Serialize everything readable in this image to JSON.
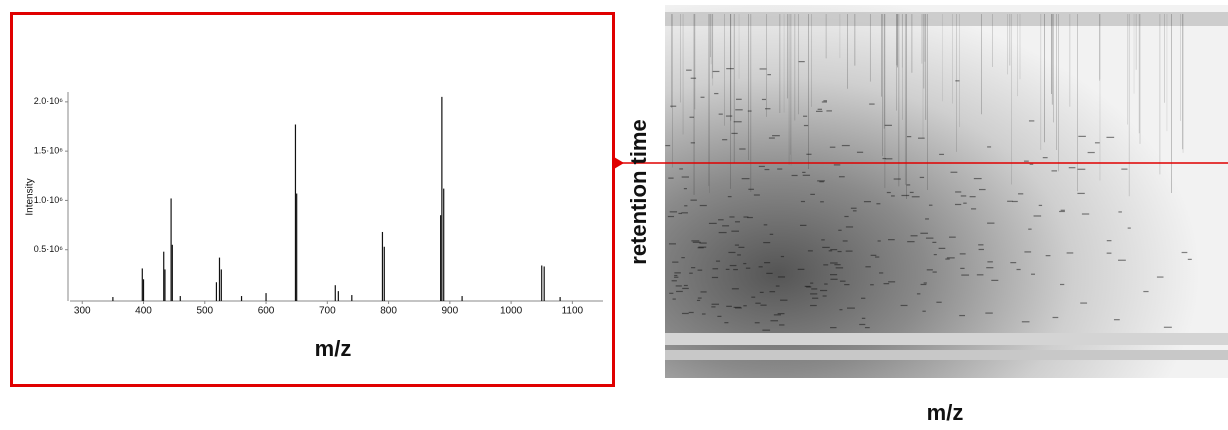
{
  "chart_data": {
    "type": "bar",
    "xlabel": "m/z",
    "ylabel": "Intensity",
    "color": "#111111",
    "x": [
      350,
      398,
      400,
      433,
      435,
      445,
      447,
      460,
      519,
      524,
      527,
      560,
      600,
      648,
      650,
      713,
      718,
      740,
      790,
      793,
      885,
      887,
      890,
      920,
      1050,
      1054,
      1080
    ],
    "values": [
      20000,
      310000,
      200000,
      480000,
      300000,
      1020000,
      550000,
      30000,
      170000,
      420000,
      300000,
      30000,
      60000,
      1770000,
      1070000,
      140000,
      80000,
      40000,
      680000,
      530000,
      850000,
      2050000,
      1120000,
      30000,
      340000,
      330000,
      20000
    ],
    "xlim": [
      280,
      1150
    ],
    "ylim": [
      0,
      2100000
    ],
    "xticks": [
      300,
      400,
      500,
      600,
      700,
      800,
      900,
      1000,
      1100
    ],
    "yticks": [
      {
        "value": 500000,
        "label": "0.5·10⁶"
      },
      {
        "value": 1000000,
        "label": "1.0·10⁶"
      },
      {
        "value": 1500000,
        "label": "1.5·10⁶"
      },
      {
        "value": 2000000,
        "label": "2.0·10⁶"
      }
    ]
  },
  "heatmap": {
    "xlabel": "m/z",
    "ylabel": "retention time"
  }
}
